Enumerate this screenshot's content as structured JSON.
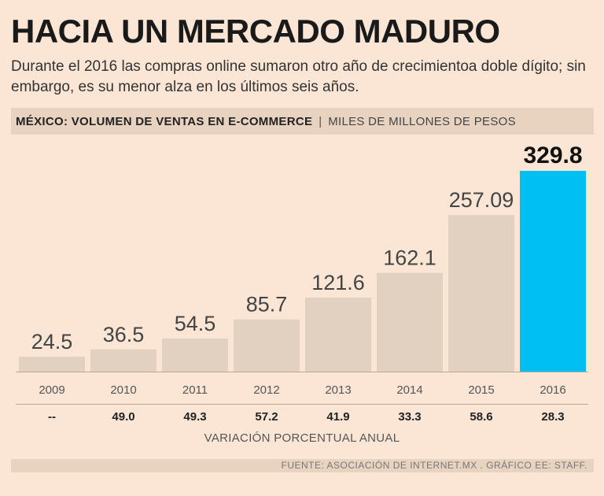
{
  "title": "HACIA UN MERCADO MADURO",
  "subtitle": "Durante el 2016 las compras online sumaron otro año de crecimientoa doble dígito; sin embargo, es su menor alza en los últimos seis años.",
  "header": {
    "main": "MÉXICO: VOLUMEN DE VENTAS EN E-COMMERCE",
    "separator": "|",
    "unit": "MILES DE MILLONES DE PESOS"
  },
  "colors": {
    "bar": "#e2d0c1",
    "highlight": "#00bff3",
    "background": "#fbe6d5"
  },
  "chart_data": {
    "type": "bar",
    "title": "MÉXICO: VOLUMEN DE VENTAS EN E-COMMERCE",
    "ylabel": "MILES DE MILLONES DE PESOS",
    "xlabel": "",
    "categories": [
      "2009",
      "2010",
      "2011",
      "2012",
      "2013",
      "2014",
      "2015",
      "2016"
    ],
    "values": [
      24.5,
      36.5,
      54.5,
      85.7,
      121.6,
      162.1,
      257.09,
      329.8
    ],
    "value_labels": [
      "24.5",
      "36.5",
      "54.5",
      "85.7",
      "121.6",
      "162.1",
      "257.09",
      "329.8"
    ],
    "highlight_index": 7,
    "ylim": [
      0,
      329.8
    ],
    "grid": false,
    "pct_change_labels": [
      "--",
      "49.0",
      "49.3",
      "57.2",
      "41.9",
      "33.3",
      "58.6",
      "28.3"
    ],
    "pct_change_title": "VARIACIÓN PORCENTUAL ANUAL"
  },
  "footer": "FUENTE: ASOCIACIÓN DE INTERNET.MX . GRÁFICO EE: STAFF."
}
